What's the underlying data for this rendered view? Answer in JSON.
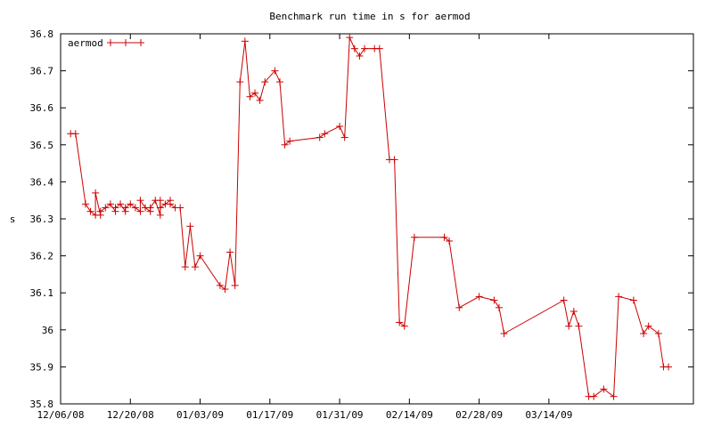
{
  "chart_data": {
    "type": "line",
    "title": "Benchmark run time in s for aermod",
    "xlabel": "",
    "ylabel": "s",
    "ylim": [
      35.8,
      36.8
    ],
    "xlim": [
      "2008-12-06",
      "2009-04-12"
    ],
    "yticks": [
      "35.8",
      "35.9",
      "36",
      "36.1",
      "36.2",
      "36.3",
      "36.4",
      "36.5",
      "36.6",
      "36.7",
      "36.8"
    ],
    "xticks": [
      {
        "date": "2008-12-06",
        "label": "12/06/08"
      },
      {
        "date": "2008-12-20",
        "label": "12/20/08"
      },
      {
        "date": "2009-01-03",
        "label": "01/03/09"
      },
      {
        "date": "2009-01-17",
        "label": "01/17/09"
      },
      {
        "date": "2009-01-31",
        "label": "01/31/09"
      },
      {
        "date": "2009-02-14",
        "label": "02/14/09"
      },
      {
        "date": "2009-02-28",
        "label": "02/28/09"
      },
      {
        "date": "2009-03-14",
        "label": "03/14/09"
      }
    ],
    "grid": false,
    "legend": "top-left",
    "series": [
      {
        "name": "aermod",
        "color": "#cc0000",
        "points": [
          [
            "2008-12-08",
            36.53
          ],
          [
            "2008-12-09",
            36.53
          ],
          [
            "2008-12-11",
            36.34
          ],
          [
            "2008-12-12",
            36.32
          ],
          [
            "2008-12-13",
            36.31
          ],
          [
            "2008-12-13",
            36.37
          ],
          [
            "2008-12-14",
            36.31
          ],
          [
            "2008-12-14",
            36.32
          ],
          [
            "2008-12-15",
            36.33
          ],
          [
            "2008-12-16",
            36.34
          ],
          [
            "2008-12-17",
            36.32
          ],
          [
            "2008-12-17",
            36.33
          ],
          [
            "2008-12-18",
            36.34
          ],
          [
            "2008-12-19",
            36.32
          ],
          [
            "2008-12-19",
            36.33
          ],
          [
            "2008-12-20",
            36.34
          ],
          [
            "2008-12-21",
            36.33
          ],
          [
            "2008-12-22",
            36.32
          ],
          [
            "2008-12-22",
            36.35
          ],
          [
            "2008-12-23",
            36.33
          ],
          [
            "2008-12-24",
            36.32
          ],
          [
            "2008-12-24",
            36.33
          ],
          [
            "2008-12-25",
            36.35
          ],
          [
            "2008-12-26",
            36.31
          ],
          [
            "2008-12-26",
            36.35
          ],
          [
            "2008-12-26",
            36.33
          ],
          [
            "2008-12-27",
            36.34
          ],
          [
            "2008-12-28",
            36.35
          ],
          [
            "2008-12-28",
            36.34
          ],
          [
            "2008-12-29",
            36.33
          ],
          [
            "2008-12-30",
            36.33
          ],
          [
            "2008-12-31",
            36.17
          ],
          [
            "2009-01-01",
            36.28
          ],
          [
            "2009-01-02",
            36.17
          ],
          [
            "2009-01-03",
            36.2
          ],
          [
            "2009-01-07",
            36.12
          ],
          [
            "2009-01-08",
            36.11
          ],
          [
            "2009-01-09",
            36.21
          ],
          [
            "2009-01-10",
            36.12
          ],
          [
            "2009-01-11",
            36.67
          ],
          [
            "2009-01-12",
            36.78
          ],
          [
            "2009-01-13",
            36.63
          ],
          [
            "2009-01-14",
            36.64
          ],
          [
            "2009-01-15",
            36.62
          ],
          [
            "2009-01-16",
            36.67
          ],
          [
            "2009-01-18",
            36.7
          ],
          [
            "2009-01-19",
            36.67
          ],
          [
            "2009-01-20",
            36.5
          ],
          [
            "2009-01-21",
            36.51
          ],
          [
            "2009-01-27",
            36.52
          ],
          [
            "2009-01-28",
            36.53
          ],
          [
            "2009-01-31",
            36.55
          ],
          [
            "2009-02-01",
            36.52
          ],
          [
            "2009-02-02",
            36.79
          ],
          [
            "2009-02-03",
            36.76
          ],
          [
            "2009-02-04",
            36.74
          ],
          [
            "2009-02-05",
            36.76
          ],
          [
            "2009-02-07",
            36.76
          ],
          [
            "2009-02-08",
            36.76
          ],
          [
            "2009-02-10",
            36.46
          ],
          [
            "2009-02-11",
            36.46
          ],
          [
            "2009-02-12",
            36.02
          ],
          [
            "2009-02-13",
            36.01
          ],
          [
            "2009-02-15",
            36.25
          ],
          [
            "2009-02-21",
            36.25
          ],
          [
            "2009-02-22",
            36.24
          ],
          [
            "2009-02-24",
            36.06
          ],
          [
            "2009-02-28",
            36.09
          ],
          [
            "2009-03-03",
            36.08
          ],
          [
            "2009-03-04",
            36.06
          ],
          [
            "2009-03-05",
            35.99
          ],
          [
            "2009-03-17",
            36.08
          ],
          [
            "2009-03-18",
            36.01
          ],
          [
            "2009-03-19",
            36.05
          ],
          [
            "2009-03-20",
            36.01
          ],
          [
            "2009-03-22",
            35.82
          ],
          [
            "2009-03-23",
            35.82
          ],
          [
            "2009-03-25",
            35.84
          ],
          [
            "2009-03-27",
            35.82
          ],
          [
            "2009-03-28",
            36.09
          ],
          [
            "2009-03-31",
            36.08
          ],
          [
            "2009-04-02",
            35.99
          ],
          [
            "2009-04-03",
            36.01
          ],
          [
            "2009-04-05",
            35.99
          ],
          [
            "2009-04-06",
            35.9
          ],
          [
            "2009-04-07",
            35.9
          ]
        ]
      }
    ]
  }
}
